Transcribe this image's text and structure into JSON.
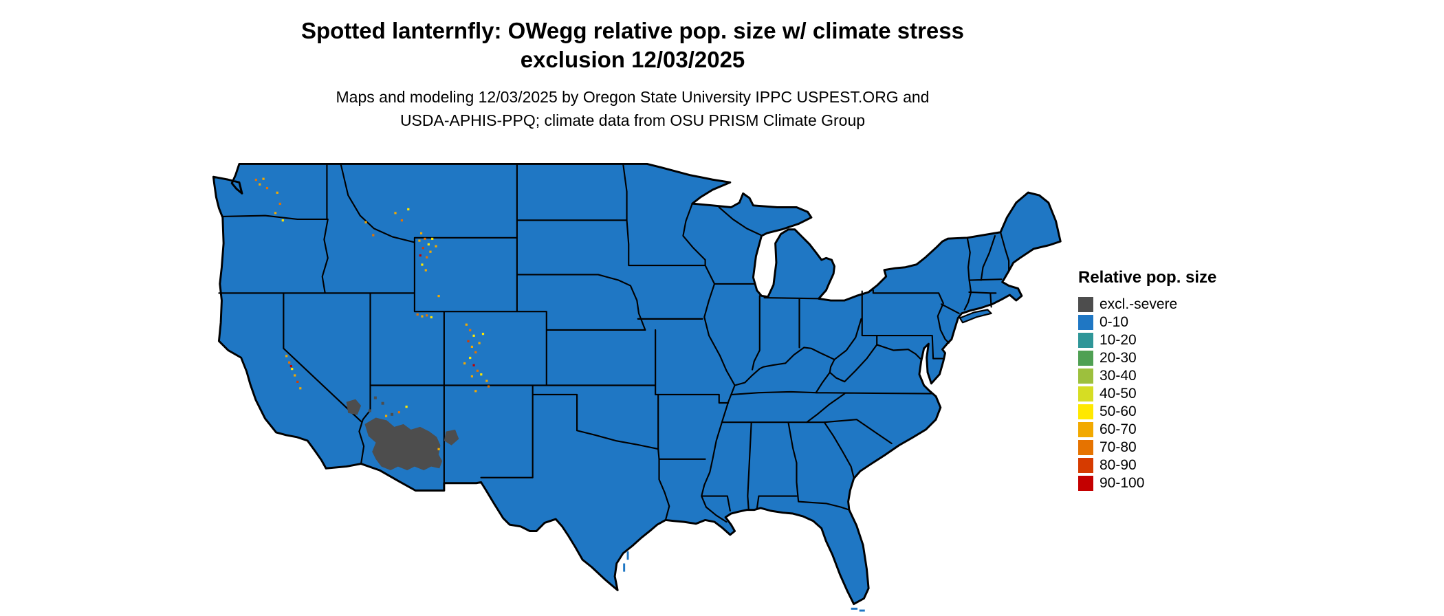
{
  "title": {
    "line1": "Spotted lanternfly: OWegg relative pop. size w/ climate stress",
    "line2": "exclusion 12/03/2025"
  },
  "subtitle": {
    "line1": "Maps and modeling 12/03/2025 by Oregon State University IPPC USPEST.ORG and",
    "line2": "USDA-APHIS-PPQ; climate data from OSU PRISM Climate Group"
  },
  "legend": {
    "title": "Relative pop. size",
    "items": [
      {
        "label": "excl.-severe",
        "color": "#4d4d4d"
      },
      {
        "label": "0-10",
        "color": "#1f77c4"
      },
      {
        "label": "10-20",
        "color": "#2f9698"
      },
      {
        "label": "20-30",
        "color": "#4fa053"
      },
      {
        "label": "30-40",
        "color": "#9dc03d"
      },
      {
        "label": "40-50",
        "color": "#d6dd23"
      },
      {
        "label": "50-60",
        "color": "#ffe800"
      },
      {
        "label": "60-70",
        "color": "#f2a900"
      },
      {
        "label": "70-80",
        "color": "#e67300"
      },
      {
        "label": "80-90",
        "color": "#d63b00"
      },
      {
        "label": "90-100",
        "color": "#c40000"
      }
    ]
  },
  "map": {
    "region": "Contiguous United States",
    "description": "Choropleth map; nearly all states shaded in the 0-10 class, climate-stress exclusion (gray) over southern Arizona and adjacent areas, scattered higher-value cells in Rocky Mountain, Sierra Nevada and Cascade areas",
    "dominant_class": "0-10",
    "excluded_class": "excl.-severe",
    "border_color": "#000000",
    "background_color": "#ffffff"
  }
}
